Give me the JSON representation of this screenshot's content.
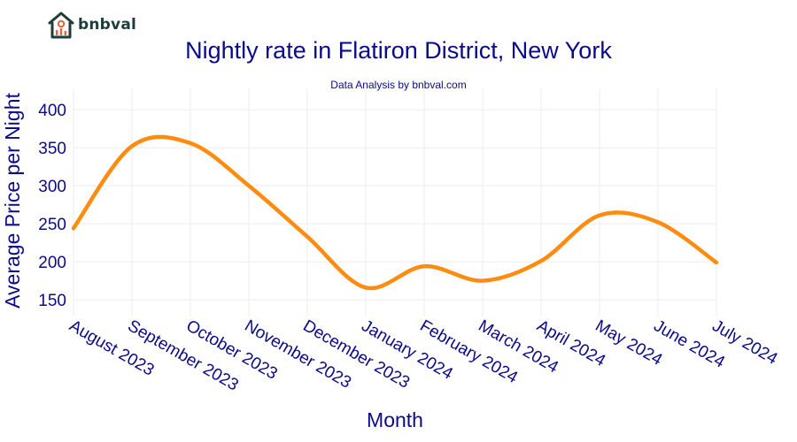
{
  "brand": {
    "name": "bnbval",
    "logo_icon": "house-chart-icon"
  },
  "colors": {
    "line": "#ff8c0f",
    "text": "#0b0b8a",
    "grid": "#ececec",
    "logo": "#1e3d3a",
    "logo_accent": "#e8643a"
  },
  "chart_data": {
    "type": "line",
    "title": "Nightly rate in Flatiron District, New York",
    "subtitle": "Data Analysis by bnbval.com",
    "xlabel": "Month",
    "ylabel": "Average Price per Night",
    "categories": [
      "August 2023",
      "September 2023",
      "October 2023",
      "November 2023",
      "December 2023",
      "January 2024",
      "February 2024",
      "March 2024",
      "April 2024",
      "May 2024",
      "June 2024",
      "July 2024"
    ],
    "series": [
      {
        "values": [
          244,
          352,
          356,
          300,
          233,
          166,
          194,
          175,
          201,
          261,
          252,
          199
        ]
      }
    ],
    "yticks": [
      150,
      200,
      250,
      300,
      350,
      400
    ],
    "ylim": [
      128,
      428
    ],
    "grid": true,
    "smooth": true
  }
}
